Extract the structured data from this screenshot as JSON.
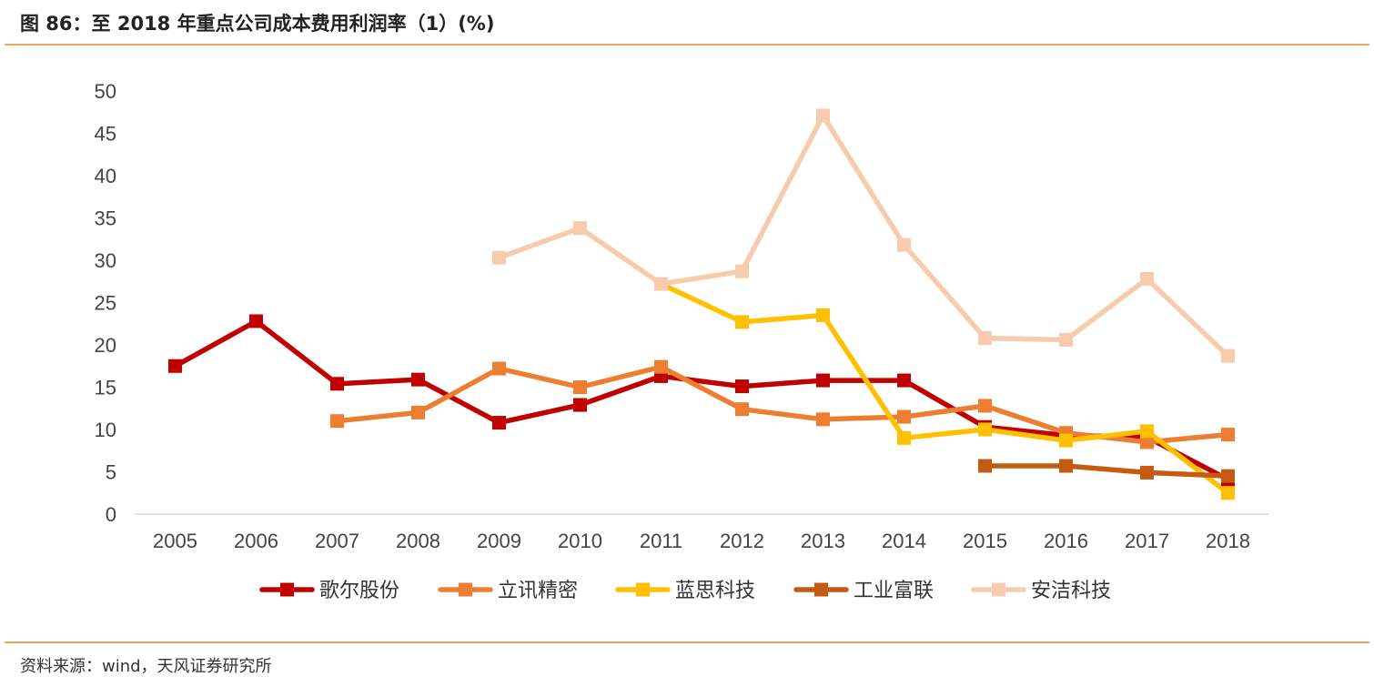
{
  "header": {
    "title": "图 86：至 2018 年重点公司成本费用利润率（1）(%)"
  },
  "footer": {
    "source": "资料来源：wind，天风证券研究所"
  },
  "chart_data": {
    "type": "line",
    "title": "图 86：至 2018 年重点公司成本费用利润率（1）(%)",
    "xlabel": "",
    "ylabel": "",
    "x": [
      "2005",
      "2006",
      "2007",
      "2008",
      "2009",
      "2010",
      "2011",
      "2012",
      "2013",
      "2014",
      "2015",
      "2016",
      "2017",
      "2018"
    ],
    "ylim": [
      0,
      50
    ],
    "yticks": [
      0,
      5,
      10,
      15,
      20,
      25,
      30,
      35,
      40,
      45,
      50
    ],
    "grid": false,
    "legend": "bottom",
    "series": [
      {
        "name": "歌尔股份",
        "color": "#c00000",
        "values": [
          17.5,
          22.8,
          15.4,
          15.9,
          10.8,
          12.9,
          16.3,
          15.1,
          15.8,
          15.8,
          10.3,
          9.3,
          9.1,
          4.1
        ]
      },
      {
        "name": "立讯精密",
        "color": "#ed7d31",
        "values": [
          null,
          null,
          11.0,
          12.0,
          17.2,
          15.0,
          17.4,
          12.4,
          11.2,
          11.5,
          12.8,
          9.6,
          8.5,
          9.4
        ]
      },
      {
        "name": "蓝思科技",
        "color": "#ffc000",
        "values": [
          null,
          null,
          null,
          null,
          null,
          null,
          27.2,
          22.7,
          23.5,
          9.0,
          10.0,
          8.7,
          9.8,
          2.5
        ]
      },
      {
        "name": "工业富联",
        "color": "#c55a11",
        "values": [
          null,
          null,
          null,
          null,
          null,
          null,
          null,
          null,
          null,
          null,
          5.7,
          5.7,
          4.9,
          4.5
        ]
      },
      {
        "name": "安洁科技",
        "color": "#f8cbad",
        "values": [
          null,
          null,
          null,
          null,
          30.3,
          33.8,
          27.2,
          28.7,
          47.1,
          31.8,
          20.8,
          20.6,
          27.8,
          18.7
        ]
      }
    ]
  }
}
